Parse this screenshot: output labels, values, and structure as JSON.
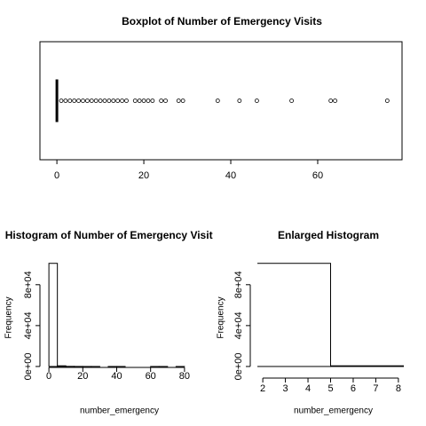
{
  "chart_data": [
    {
      "type": "boxplot",
      "title": "Boxplot of Number of Emergency Visits",
      "orientation": "horizontal",
      "stats": {
        "min": 0,
        "q1": 0,
        "median": 0,
        "q3": 0,
        "max": 0
      },
      "outliers": [
        1,
        2,
        3,
        4,
        5,
        6,
        7,
        8,
        9,
        10,
        11,
        12,
        13,
        14,
        15,
        16,
        18,
        19,
        20,
        21,
        22,
        24,
        25,
        28,
        29,
        37,
        42,
        46,
        54,
        63,
        64,
        76
      ],
      "xlim": [
        -3.9,
        79.4
      ],
      "xticks": [
        0,
        20,
        40,
        60
      ],
      "color": "#000000"
    },
    {
      "type": "histogram",
      "title": "Histogram of Number of Emergency Visits",
      "xlabel": "number_emergency",
      "ylabel": "Frequency",
      "bins": [
        0,
        5,
        10,
        15,
        20,
        25,
        30,
        35,
        40,
        45,
        50,
        55,
        60,
        65,
        70,
        75,
        80
      ],
      "counts": [
        100900,
        650,
        130,
        45,
        15,
        5,
        0,
        8,
        5,
        0,
        0,
        0,
        1,
        2,
        0,
        1
      ],
      "xlim": [
        -3.2,
        83.2
      ],
      "xticks": [
        0,
        20,
        40,
        60,
        80
      ],
      "ylim": [
        -4400,
        105000
      ],
      "yticks": [
        {
          "value": 0,
          "label": "0e+00"
        },
        {
          "value": 40000,
          "label": "4e+04"
        },
        {
          "value": 80000,
          "label": "8e+04"
        }
      ],
      "color": "#000000"
    },
    {
      "type": "histogram",
      "title": "Enlarged Histogram",
      "xlabel": "number_emergency",
      "ylabel": "Frequency",
      "bins": [
        0,
        5,
        10
      ],
      "counts": [
        100900,
        650
      ],
      "xlim": [
        1.76,
        8.24
      ],
      "xticks": [
        2,
        3,
        4,
        5,
        6,
        7,
        8
      ],
      "ylim": [
        -4400,
        105000
      ],
      "yticks": [
        {
          "value": 0,
          "label": "0e+00"
        },
        {
          "value": 40000,
          "label": "4e+04"
        },
        {
          "value": 80000,
          "label": "8e+04"
        }
      ],
      "color": "#000000"
    }
  ]
}
